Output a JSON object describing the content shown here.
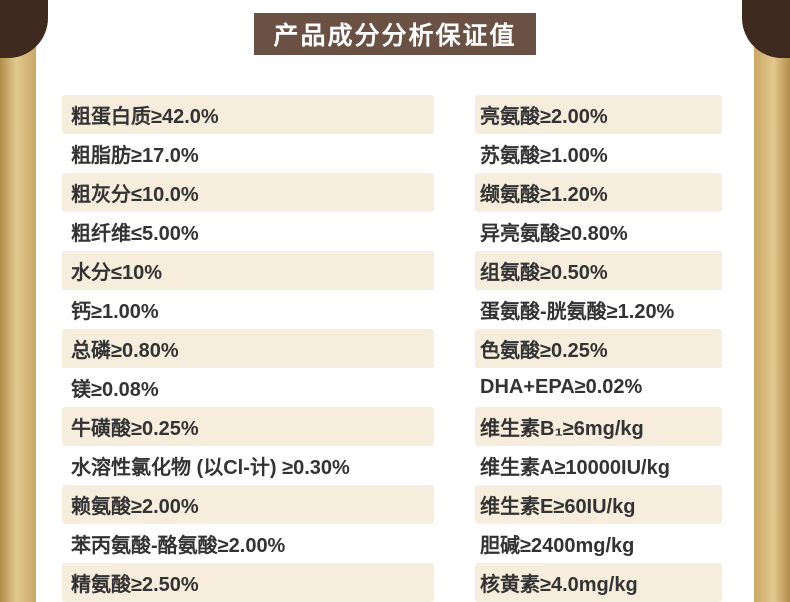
{
  "header": {
    "title": "产品成分分析保证值"
  },
  "colors": {
    "header_bg": "#6b5143",
    "corner_brown": "#3e2a1e",
    "row_alt_bg": "#f6eddc",
    "gold_dark": "#b08d4a",
    "gold_light": "#e2c88e",
    "text": "#333333"
  },
  "table": {
    "rows": [
      {
        "left": "粗蛋白质≥42.0%",
        "right": "亮氨酸≥2.00%"
      },
      {
        "left": "粗脂肪≥17.0%",
        "right": "苏氨酸≥1.00%"
      },
      {
        "left": "粗灰分≤10.0%",
        "right": "缬氨酸≥1.20%"
      },
      {
        "left": "粗纤维≤5.00%",
        "right": "异亮氨酸≥0.80%"
      },
      {
        "left": "水分≤10%",
        "right": "组氨酸≥0.50%"
      },
      {
        "left": "钙≥1.00%",
        "right": "蛋氨酸-胱氨酸≥1.20%"
      },
      {
        "left": "总磷≥0.80%",
        "right": "色氨酸≥0.25%"
      },
      {
        "left": "镁≥0.08%",
        "right": "DHA+EPA≥0.02%"
      },
      {
        "left": "牛磺酸≥0.25%",
        "right": "维生素B₁≥6mg/kg"
      },
      {
        "left": "水溶性氯化物 (以Cl-计) ≥0.30%",
        "right": "维生素A≥10000IU/kg"
      },
      {
        "left": "赖氨酸≥2.00%",
        "right": "维生素E≥60IU/kg"
      },
      {
        "left": "苯丙氨酸-酪氨酸≥2.00%",
        "right": "胆碱≥2400mg/kg"
      },
      {
        "left": "精氨酸≥2.50%",
        "right": "核黄素≥4.0mg/kg"
      }
    ]
  }
}
